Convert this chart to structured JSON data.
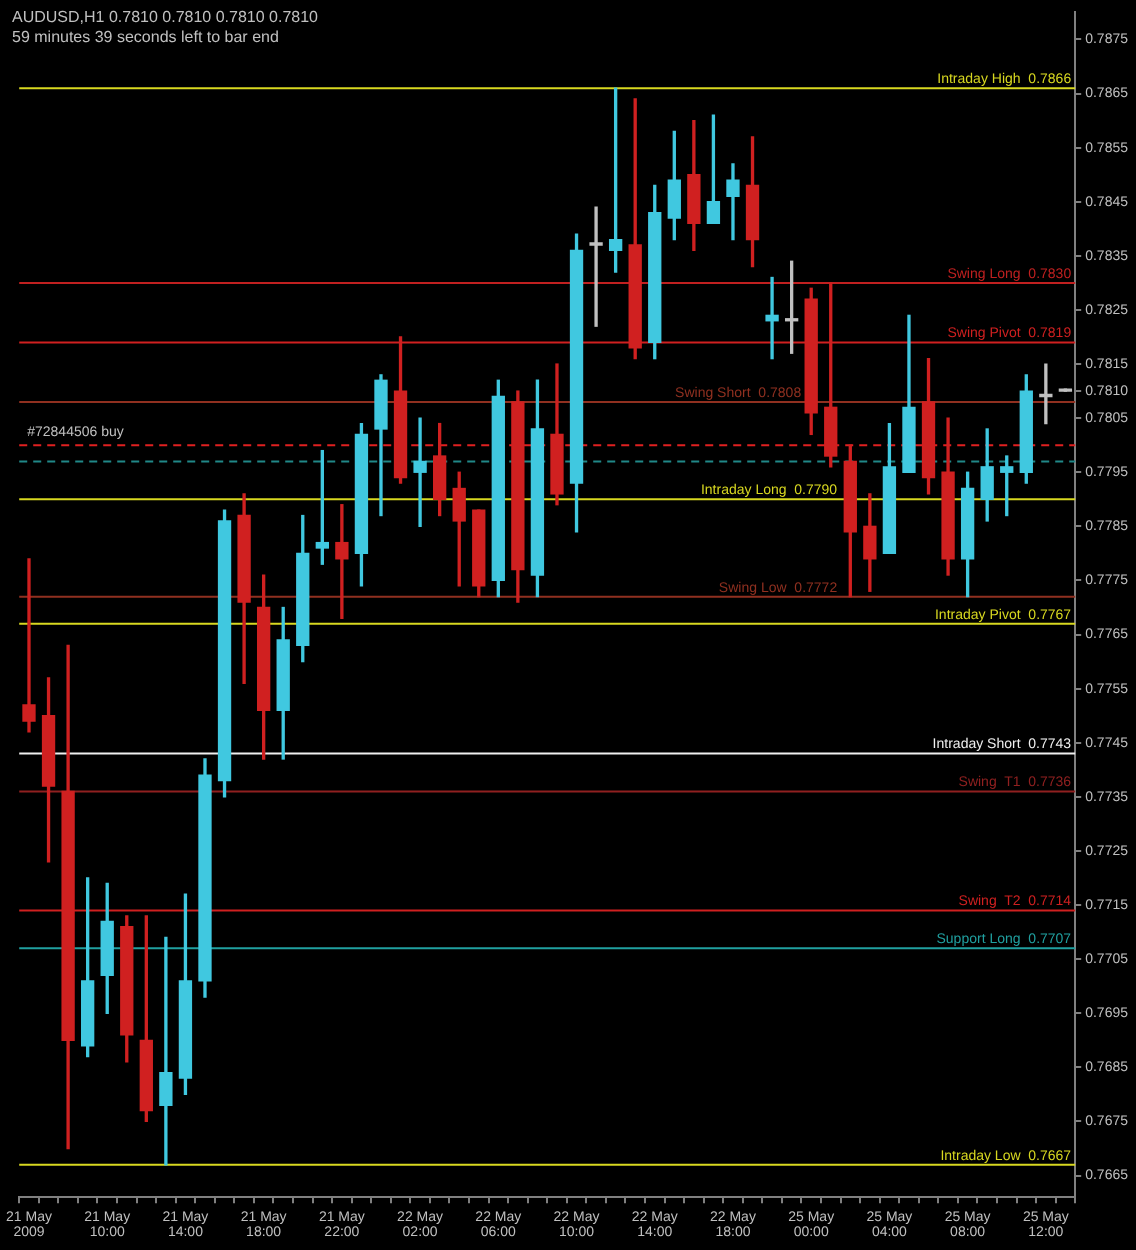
{
  "chart_data": {
    "type": "candlestick",
    "title": "AUDUSD,H1  0.7810 0.7810 0.7810 0.7810",
    "subtitle": "59 minutes 39 seconds left to bar end",
    "categories": [
      "21 May 2009",
      null,
      null,
      null,
      "21 May 10:00",
      null,
      null,
      null,
      "21 May 14:00",
      null,
      null,
      null,
      "21 May 18:00",
      null,
      null,
      null,
      "21 May 22:00",
      null,
      null,
      null,
      "22 May 02:00",
      null,
      null,
      null,
      "22 May 06:00",
      null,
      null,
      null,
      "22 May 10:00",
      null,
      null,
      null,
      "22 May 14:00",
      null,
      null,
      null,
      "22 May 18:00",
      null,
      null,
      null,
      "25 May 00:00",
      null,
      null,
      null,
      "25 May 04:00",
      null,
      null,
      null,
      "25 May 08:00",
      null,
      null,
      null,
      "25 May 12:00",
      null
    ],
    "ohlc": [
      [
        0.7752,
        0.7779,
        0.7747,
        0.7749
      ],
      [
        0.775,
        0.7757,
        0.7723,
        0.7737
      ],
      [
        0.7736,
        0.7763,
        0.767,
        0.769
      ],
      [
        0.7689,
        0.772,
        0.7687,
        0.7701
      ],
      [
        0.7702,
        0.7719,
        0.7695,
        0.7712
      ],
      [
        0.7711,
        0.7713,
        0.7686,
        0.7691
      ],
      [
        0.769,
        0.7713,
        0.7675,
        0.7677
      ],
      [
        0.7678,
        0.7709,
        0.7667,
        0.7684
      ],
      [
        0.7683,
        0.7717,
        0.768,
        0.7701
      ],
      [
        0.7701,
        0.7742,
        0.7698,
        0.7739
      ],
      [
        0.7738,
        0.7788,
        0.7735,
        0.7786
      ],
      [
        0.7787,
        0.7791,
        0.7756,
        0.7771
      ],
      [
        0.777,
        0.7776,
        0.7742,
        0.7751
      ],
      [
        0.7751,
        0.777,
        0.7742,
        0.7764
      ],
      [
        0.7763,
        0.7787,
        0.776,
        0.778
      ],
      [
        0.7781,
        0.7799,
        0.7778,
        0.7782
      ],
      [
        0.7782,
        0.7789,
        0.7768,
        0.7779
      ],
      [
        0.778,
        0.7804,
        0.7774,
        0.7802
      ],
      [
        0.7803,
        0.7813,
        0.7787,
        0.7812
      ],
      [
        0.781,
        0.782,
        0.7793,
        0.7794
      ],
      [
        0.7795,
        0.7805,
        0.7785,
        0.7797
      ],
      [
        0.7798,
        0.7804,
        0.7787,
        0.779
      ],
      [
        0.7792,
        0.7795,
        0.7774,
        0.7786
      ],
      [
        0.7788,
        0.7788,
        0.7772,
        0.7774
      ],
      [
        0.7775,
        0.7812,
        0.7772,
        0.7809
      ],
      [
        0.7808,
        0.781,
        0.7771,
        0.7777
      ],
      [
        0.7776,
        0.7812,
        0.7772,
        0.7803
      ],
      [
        0.7802,
        0.7815,
        0.7789,
        0.7791
      ],
      [
        0.7793,
        0.7839,
        0.7784,
        0.7836
      ],
      [
        0.7837,
        0.7844,
        0.7822,
        0.7837
      ],
      [
        0.7836,
        0.7866,
        0.7832,
        0.7838
      ],
      [
        0.7837,
        0.7864,
        0.7816,
        0.7818
      ],
      [
        0.7819,
        0.7848,
        0.7816,
        0.7843
      ],
      [
        0.7842,
        0.7858,
        0.7838,
        0.7849
      ],
      [
        0.785,
        0.786,
        0.7836,
        0.7841
      ],
      [
        0.7841,
        0.7861,
        0.7841,
        0.7845
      ],
      [
        0.7846,
        0.7852,
        0.7838,
        0.7849
      ],
      [
        0.7848,
        0.7857,
        0.7833,
        0.7838
      ],
      [
        0.7823,
        0.7831,
        0.7816,
        0.7824
      ],
      [
        0.7823,
        0.7834,
        0.7817,
        0.7823
      ],
      [
        0.7827,
        0.7829,
        0.7802,
        0.7806
      ],
      [
        0.7807,
        0.783,
        0.7796,
        0.7798
      ],
      [
        0.7797,
        0.78,
        0.7772,
        0.7784
      ],
      [
        0.7785,
        0.7791,
        0.7773,
        0.7779
      ],
      [
        0.778,
        0.7804,
        0.778,
        0.7796
      ],
      [
        0.7795,
        0.7824,
        0.7795,
        0.7807
      ],
      [
        0.7808,
        0.7816,
        0.7791,
        0.7794
      ],
      [
        0.7795,
        0.7805,
        0.7776,
        0.7779
      ],
      [
        0.7779,
        0.7795,
        0.7772,
        0.7792
      ],
      [
        0.779,
        0.7803,
        0.7786,
        0.7796
      ],
      [
        0.7795,
        0.7798,
        0.7787,
        0.7796
      ],
      [
        0.7795,
        0.7813,
        0.7793,
        0.781
      ],
      [
        0.7809,
        0.7815,
        0.7804,
        0.7809
      ],
      [
        0.781,
        0.781,
        0.781,
        0.781
      ]
    ],
    "colors": [
      "#d02020",
      "#d02020",
      "#d02020",
      "#40c8e0",
      "#40c8e0",
      "#d02020",
      "#d02020",
      "#40c8e0",
      "#40c8e0",
      "#40c8e0",
      "#40c8e0",
      "#d02020",
      "#d02020",
      "#40c8e0",
      "#40c8e0",
      "#40c8e0",
      "#d02020",
      "#40c8e0",
      "#40c8e0",
      "#d02020",
      "#40c8e0",
      "#d02020",
      "#d02020",
      "#d02020",
      "#40c8e0",
      "#d02020",
      "#40c8e0",
      "#d02020",
      "#40c8e0",
      "#c0c0c0",
      "#40c8e0",
      "#d02020",
      "#40c8e0",
      "#40c8e0",
      "#d02020",
      "#40c8e0",
      "#40c8e0",
      "#d02020",
      "#40c8e0",
      "#c0c0c0",
      "#d02020",
      "#d02020",
      "#d02020",
      "#d02020",
      "#40c8e0",
      "#40c8e0",
      "#d02020",
      "#d02020",
      "#40c8e0",
      "#40c8e0",
      "#40c8e0",
      "#40c8e0",
      "#c0c0c0",
      "#c0c0c0"
    ],
    "ylim": [
      0.7661,
      0.788
    ],
    "yticks": [
      0.7665,
      0.7675,
      0.7685,
      0.7695,
      0.7705,
      0.7715,
      0.7725,
      0.7735,
      0.7745,
      0.7755,
      0.7765,
      0.7775,
      0.7785,
      0.7795,
      0.7805,
      {
        "value": 0.781,
        "label": "0.7810"
      },
      0.7815,
      0.7825,
      0.7835,
      0.7845,
      0.7855,
      0.7865,
      0.7875
    ],
    "ref_lines": [
      {
        "axis": "y",
        "value": 0.7866,
        "label": "Intraday High  0.7866",
        "color": "#d8d820"
      },
      {
        "axis": "y",
        "value": 0.783,
        "label": "Swing Long  0.7830",
        "color": "#c02020"
      },
      {
        "axis": "y",
        "value": 0.7819,
        "label": "Swing Pivot  0.7819",
        "color": "#d02020"
      },
      {
        "axis": "y",
        "value": 0.7808,
        "label": "Swing Short  0.7808",
        "color": "#903020"
      },
      {
        "axis": "y",
        "value": 0.78,
        "label": null,
        "color": "#e02020",
        "line_style": "dashed"
      },
      {
        "axis": "y",
        "value": 0.7797,
        "label": null,
        "color": "#208888",
        "line_style": "dashed"
      },
      {
        "axis": "y",
        "value": 0.779,
        "label": "Intraday Long  0.7790",
        "color": "#d8d820"
      },
      {
        "axis": "y",
        "value": 0.7772,
        "label": "Swing Low  0.7772",
        "color": "#903020"
      },
      {
        "axis": "y",
        "value": 0.7767,
        "label": "Intraday Pivot  0.7767",
        "color": "#d8d820"
      },
      {
        "axis": "y",
        "value": 0.7743,
        "label": "Intraday Short  0.7743",
        "color": "#f0f0f0"
      },
      {
        "axis": "y",
        "value": 0.7736,
        "label": "Swing  T1  0.7736",
        "color": "#902020"
      },
      {
        "axis": "y",
        "value": 0.7714,
        "label": "Swing  T2  0.7714",
        "color": "#d02020"
      },
      {
        "axis": "y",
        "value": 0.7707,
        "label": "Support Long  0.7707",
        "color": "#20a0a0"
      },
      {
        "axis": "y",
        "value": 0.7667,
        "label": "Intraday Low  0.7667",
        "color": "#d8d820"
      }
    ],
    "annotations": [
      {
        "text": "#72844506 buy",
        "y": 0.78
      }
    ],
    "legend": false,
    "grid": false
  }
}
